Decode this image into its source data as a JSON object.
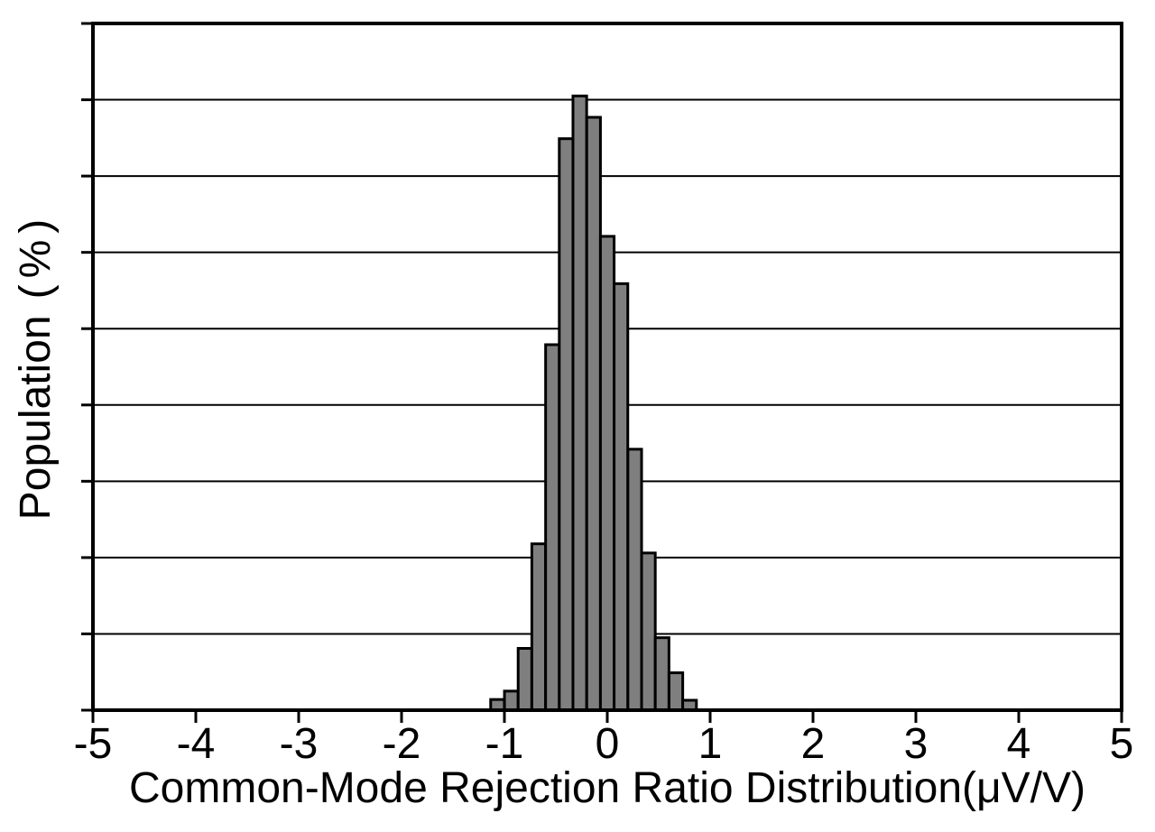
{
  "figure": {
    "background": "#ffffff",
    "frame_color": "#000000",
    "text_color": "#000000"
  },
  "chart_data": {
    "type": "bar",
    "subtype": "histogram",
    "title": "",
    "xlabel": "Common-Mode Rejection Ratio Distribution(μV/V)",
    "ylabel": "Population (%)",
    "ylabel_parts": {
      "name": "Population",
      "unit": "(%)"
    },
    "xlim": [
      -5,
      5
    ],
    "x_ticks": [
      -5,
      -4,
      -3,
      -2,
      -1,
      0,
      1,
      2,
      3,
      4,
      5
    ],
    "x_tick_labels": [
      "-5",
      "-4",
      "-3",
      "-2",
      "-1",
      "0",
      "1",
      "2",
      "3",
      "4",
      "5"
    ],
    "y_ticks_labeled": false,
    "y_gridline_intervals": 9,
    "ylim_grid_units": [
      0,
      9
    ],
    "y_note": "y-axis ticks and gridlines are unlabeled; bar values are expressed in units of one horizontal gridline interval",
    "grid": "horizontal",
    "legend": false,
    "bin_width": 0.133,
    "bin_centers": [
      -1.067,
      -0.933,
      -0.8,
      -0.667,
      -0.533,
      -0.4,
      -0.267,
      -0.133,
      0,
      0.133,
      0.267,
      0.4,
      0.533,
      0.667,
      0.8
    ],
    "values_grid_units": [
      0.14,
      0.25,
      0.81,
      2.18,
      4.79,
      7.49,
      8.05,
      7.77,
      6.21,
      5.59,
      3.42,
      2.06,
      0.95,
      0.49,
      0.13
    ],
    "bar_fill": "#7f7f7f",
    "bar_stroke": "#000000"
  }
}
